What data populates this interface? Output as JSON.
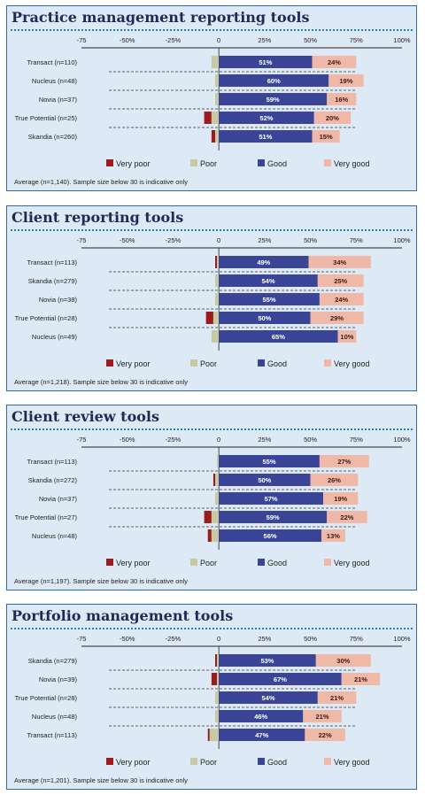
{
  "colors": {
    "very_poor": "#9b1b1e",
    "poor": "#c7c9a3",
    "good": "#3b4598",
    "very_good": "#f0b8a6",
    "panel_bg": "#dde9f4",
    "border": "#2d6aa6",
    "title": "#1f2a55"
  },
  "legend": [
    "Very poor",
    "Poor",
    "Good",
    "Very good"
  ],
  "chart_data": [
    {
      "type": "bar",
      "title": "Practice management reporting tools",
      "xlim": [
        -75,
        100
      ],
      "ticks": [
        "-75",
        "-50%",
        "-25%",
        "0",
        "25%",
        "50%",
        "75%",
        "100%"
      ],
      "categories": [
        "Transact (n=110)",
        "Nucleus (n=48)",
        "Novia (n=37)",
        "True Potential (n=25)",
        "Skandia (n=260)"
      ],
      "series": [
        {
          "name": "Very poor",
          "values": [
            0,
            0,
            0,
            -4,
            -2
          ]
        },
        {
          "name": "Poor",
          "values": [
            -4,
            -2,
            -2,
            -4,
            -2
          ]
        },
        {
          "name": "Good",
          "values": [
            51,
            60,
            59,
            52,
            51
          ]
        },
        {
          "name": "Very good",
          "values": [
            24,
            19,
            16,
            20,
            15
          ]
        }
      ],
      "labels_bold": true,
      "note": "Average (n=1,140). Sample size below 30 is indicative only"
    },
    {
      "type": "bar",
      "title": "Client reporting tools",
      "xlim": [
        -75,
        100
      ],
      "ticks": [
        "-75",
        "-50%",
        "-25%",
        "0",
        "25%",
        "50%",
        "75%",
        "100%"
      ],
      "categories": [
        "Transact (n=113)",
        "Skandia (n=279)",
        "Novia (n=38)",
        "True Potential (n=28)",
        "Nucleus (n=49)"
      ],
      "series": [
        {
          "name": "Very poor",
          "values": [
            -1,
            0,
            0,
            -4,
            0
          ]
        },
        {
          "name": "Poor",
          "values": [
            -1,
            -2,
            -2,
            -3,
            -4
          ]
        },
        {
          "name": "Good",
          "values": [
            49,
            54,
            55,
            50,
            65
          ]
        },
        {
          "name": "Very good",
          "values": [
            34,
            25,
            24,
            29,
            10
          ]
        }
      ],
      "labels_bold": false,
      "note": "Average (n=1,218). Sample size below 30 is indicative only"
    },
    {
      "type": "bar",
      "title": "Client review tools",
      "xlim": [
        -75,
        100
      ],
      "ticks": [
        "-75",
        "-50%",
        "-25%",
        "0",
        "25%",
        "50%",
        "75%",
        "100%"
      ],
      "categories": [
        "Transact (n=113)",
        "Skandia (n=272)",
        "Novia (n=37)",
        "True Potential (n=27)",
        "Nucleus (n=48)"
      ],
      "series": [
        {
          "name": "Very poor",
          "values": [
            0,
            -1,
            0,
            -4,
            -2
          ]
        },
        {
          "name": "Poor",
          "values": [
            -1,
            -2,
            -2,
            -4,
            -4
          ]
        },
        {
          "name": "Good",
          "values": [
            55,
            50,
            57,
            59,
            56
          ]
        },
        {
          "name": "Very good",
          "values": [
            27,
            26,
            19,
            22,
            13
          ]
        }
      ],
      "labels_bold": true,
      "note": "Average (n=1,197). Sample size below 30 is indicative only"
    },
    {
      "type": "bar",
      "title": "Portfolio management tools",
      "xlim": [
        -75,
        100
      ],
      "ticks": [
        "-75",
        "-50%",
        "-25%",
        "0",
        "25%",
        "50%",
        "75%",
        "100%"
      ],
      "categories": [
        "Skandia (n=279)",
        "Novia (n=39)",
        "True Potential (n=28)",
        "Nucleus (n=48)",
        "Transact (n=113)"
      ],
      "series": [
        {
          "name": "Very poor",
          "values": [
            -1,
            -3,
            0,
            0,
            -1
          ]
        },
        {
          "name": "Poor",
          "values": [
            -1,
            -1,
            -2,
            -2,
            -5
          ]
        },
        {
          "name": "Good",
          "values": [
            53,
            67,
            54,
            46,
            47
          ]
        },
        {
          "name": "Very good",
          "values": [
            30,
            21,
            21,
            21,
            22
          ]
        }
      ],
      "labels_bold": true,
      "note": "Average (n=1,201). Sample size below 30 is indicative only"
    }
  ]
}
